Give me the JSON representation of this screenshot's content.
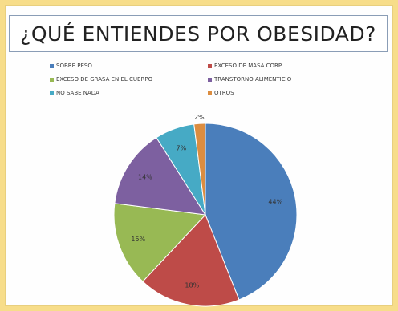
{
  "chart_data": {
    "type": "pie",
    "title": "¿QUÉ ENTIENDES POR OBESIDAD?",
    "legend_position": "top",
    "slices": [
      {
        "name": "SOBRE PESO",
        "value": 44,
        "label": "44%",
        "color": "#4a7ebb"
      },
      {
        "name": "EXCESO DE MASA CORP.",
        "value": 18,
        "label": "18%",
        "color": "#be4b48"
      },
      {
        "name": "EXCESO DE GRASA EN EL CUERPO",
        "value": 15,
        "label": "15%",
        "color": "#98b954"
      },
      {
        "name": "TRANSTORNO ALIMENTICIO",
        "value": 14,
        "label": "14%",
        "color": "#7d60a0"
      },
      {
        "name": "NO SABE NADA",
        "value": 7,
        "label": "7%",
        "color": "#46aac5"
      },
      {
        "name": "OTROS",
        "value": 2,
        "label": "2%",
        "color": "#dc8d40"
      }
    ]
  }
}
